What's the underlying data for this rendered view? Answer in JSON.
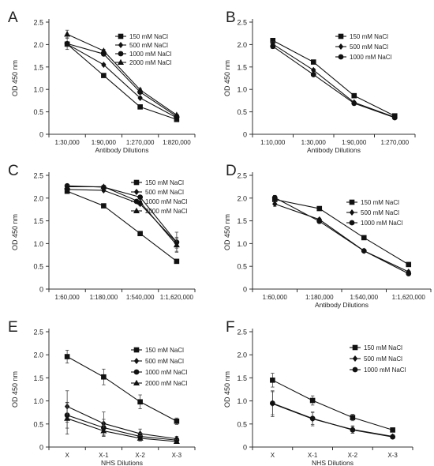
{
  "chart_data": [
    {
      "type": "line",
      "panel_label": "A",
      "ylabel": "OD 450 nm",
      "xlabel": "Antibody Dilutions",
      "ylim": [
        0,
        2.5
      ],
      "yticks": [
        "0",
        "0.5",
        "1.0",
        "1.5",
        "2.0",
        "2.5"
      ],
      "categories": [
        "1:30,000",
        "1:90,000",
        "1:270,000",
        "1:820,000"
      ],
      "legend_position": "top-right",
      "series": [
        {
          "name": "150 mM NaCl",
          "marker": "square",
          "values": [
            2.01,
            1.31,
            0.61,
            0.33
          ],
          "err": [
            0.05,
            0.03,
            0.03,
            0.02
          ]
        },
        {
          "name": "500 mM NaCl",
          "marker": "diamond",
          "values": [
            2.01,
            1.55,
            0.81,
            0.37
          ],
          "err": [
            0.05,
            0.03,
            0.03,
            0.02
          ]
        },
        {
          "name": "1000 mM NaCl",
          "marker": "circle",
          "values": [
            2.02,
            1.79,
            0.94,
            0.4
          ],
          "err": [
            0.13,
            0.03,
            0.03,
            0.02
          ]
        },
        {
          "name": "2000 mM NaCl",
          "marker": "triangle",
          "values": [
            2.23,
            1.86,
            0.99,
            0.43
          ],
          "err": [
            0.09,
            0.03,
            0.03,
            0.02
          ]
        }
      ]
    },
    {
      "type": "line",
      "panel_label": "B",
      "ylabel": "OD 450 nm",
      "xlabel": "Antibody Dilutions",
      "ylim": [
        0,
        2.5
      ],
      "yticks": [
        "0",
        "0.5",
        "1.0",
        "1.5",
        "2.0",
        "2.5"
      ],
      "categories": [
        "1:10,000",
        "1:30,000",
        "1:90,000",
        "1:270,000"
      ],
      "legend_position": "top-right",
      "series": [
        {
          "name": "150 mM NaCl",
          "marker": "square",
          "values": [
            2.09,
            1.61,
            0.86,
            0.41
          ],
          "err": [
            0.05,
            0.03,
            0.03,
            0.02
          ]
        },
        {
          "name": "500 mM NaCl",
          "marker": "diamond",
          "values": [
            2.01,
            1.43,
            0.71,
            0.38
          ],
          "err": [
            0.05,
            0.03,
            0.03,
            0.02
          ]
        },
        {
          "name": "1000 mM NaCl",
          "marker": "circle",
          "values": [
            1.96,
            1.33,
            0.69,
            0.37
          ],
          "err": [
            0.05,
            0.03,
            0.03,
            0.02
          ]
        }
      ]
    },
    {
      "type": "line",
      "panel_label": "C",
      "ylabel": "OD 450 nm",
      "xlabel": "",
      "ylim": [
        0,
        2.5
      ],
      "yticks": [
        "0",
        "0.5",
        "1.0",
        "1.5",
        "2.0",
        "2.5"
      ],
      "categories": [
        "1:60,000",
        "1:180,000",
        "1:540,000",
        "1:1,620,000"
      ],
      "legend_position": "top-right",
      "series": [
        {
          "name": "150 mM NaCl",
          "marker": "square",
          "values": [
            2.15,
            1.83,
            1.22,
            0.61
          ],
          "err": [
            0.03,
            0.03,
            0.03,
            0.04
          ]
        },
        {
          "name": "500 mM NaCl",
          "marker": "diamond",
          "values": [
            2.19,
            2.17,
            1.87,
            1.02
          ],
          "err": [
            0.03,
            0.03,
            0.03,
            0.12
          ]
        },
        {
          "name": "1000 mM NaCl",
          "marker": "circle",
          "values": [
            2.27,
            2.24,
            2.02,
            1.03
          ],
          "err": [
            0.03,
            0.03,
            0.03,
            0.22
          ]
        },
        {
          "name": "2000 mM NaCl",
          "marker": "triangle",
          "values": [
            2.25,
            2.25,
            1.91,
            0.97
          ],
          "err": [
            0.03,
            0.03,
            0.03,
            0.14
          ]
        }
      ]
    },
    {
      "type": "line",
      "panel_label": "D",
      "ylabel": "OD 450 nm",
      "xlabel": "Antibody Dilutions",
      "ylim": [
        0,
        2.5
      ],
      "yticks": [
        "0",
        "0.5",
        "1.0",
        "1.5",
        "2.0",
        "2.5"
      ],
      "categories": [
        "1:60,000",
        "1:180,000",
        "1:540,000",
        "1:1,620,000"
      ],
      "legend_position": "top-right",
      "series": [
        {
          "name": "150 mM NaCl",
          "marker": "square",
          "values": [
            1.97,
            1.77,
            1.13,
            0.54
          ],
          "err": [
            0.08,
            0.03,
            0.03,
            0.03
          ]
        },
        {
          "name": "500 mM NaCl",
          "marker": "diamond",
          "values": [
            1.87,
            1.53,
            0.84,
            0.38
          ],
          "err": [
            0.05,
            0.03,
            0.03,
            0.02
          ]
        },
        {
          "name": "1000 mM NaCl",
          "marker": "circle",
          "values": [
            2.01,
            1.49,
            0.84,
            0.34
          ],
          "err": [
            0.05,
            0.03,
            0.03,
            0.02
          ]
        }
      ]
    },
    {
      "type": "line",
      "panel_label": "E",
      "ylabel": "OD 450 nm",
      "xlabel": "NHS Dilutions",
      "ylim": [
        0,
        2.5
      ],
      "yticks": [
        "0",
        "0.5",
        "1.0",
        "1.5",
        "2.0",
        "2.5"
      ],
      "categories": [
        "X",
        "X-1",
        "X-2",
        "X-3"
      ],
      "legend_position": "top-right",
      "series": [
        {
          "name": "150 mM NaCl",
          "marker": "square",
          "values": [
            1.96,
            1.52,
            0.98,
            0.56
          ],
          "err": [
            0.14,
            0.17,
            0.15,
            0.07
          ]
        },
        {
          "name": "500 mM NaCl",
          "marker": "diamond",
          "values": [
            0.88,
            0.51,
            0.29,
            0.18
          ],
          "err": [
            0.34,
            0.25,
            0.1,
            0.05
          ]
        },
        {
          "name": "1000 mM NaCl",
          "marker": "circle",
          "values": [
            0.69,
            0.42,
            0.23,
            0.15
          ],
          "err": [
            0.28,
            0.18,
            0.07,
            0.04
          ]
        },
        {
          "name": "2000 mM NaCl",
          "marker": "triangle",
          "values": [
            0.62,
            0.35,
            0.19,
            0.12
          ],
          "err": [
            0.34,
            0.12,
            0.06,
            0.04
          ]
        }
      ]
    },
    {
      "type": "line",
      "panel_label": "F",
      "ylabel": "OD 450 nm",
      "xlabel": "NHS Dilutions",
      "ylim": [
        0,
        2.5
      ],
      "yticks": [
        "0",
        "0.5",
        "1.0",
        "1.5",
        "2.0",
        "2.5"
      ],
      "categories": [
        "X",
        "X-1",
        "X-2",
        "X-3"
      ],
      "legend_position": "top-right",
      "series": [
        {
          "name": "150 mM NaCl",
          "marker": "square",
          "values": [
            1.45,
            1.01,
            0.64,
            0.37
          ],
          "err": [
            0.15,
            0.1,
            0.07,
            0.04
          ]
        },
        {
          "name": "500 mM NaCl",
          "marker": "diamond",
          "values": [
            0.94,
            0.61,
            0.38,
            0.23
          ],
          "err": [
            0.28,
            0.15,
            0.08,
            0.04
          ]
        },
        {
          "name": "1000 mM NaCl",
          "marker": "circle",
          "values": [
            0.95,
            0.62,
            0.37,
            0.22
          ],
          "err": [
            0.25,
            0.13,
            0.07,
            0.04
          ]
        }
      ]
    }
  ]
}
